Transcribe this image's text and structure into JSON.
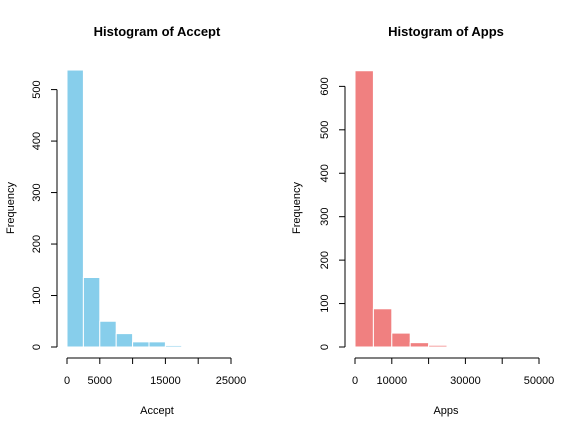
{
  "chart_data": [
    {
      "type": "bar",
      "title": "Histogram of Accept",
      "xlabel": "Accept",
      "ylabel": "Frequency",
      "color": "#87CEEB",
      "bin_edges": [
        0,
        2500,
        5000,
        7500,
        10000,
        12500,
        15000,
        17500,
        20000,
        22500,
        25000
      ],
      "values": [
        538,
        135,
        50,
        26,
        10,
        10,
        3,
        1,
        0,
        0
      ],
      "xlim": [
        0,
        25000
      ],
      "ylim": [
        0,
        540
      ],
      "xticks": [
        0,
        5000,
        10000,
        15000,
        20000,
        25000
      ],
      "xtick_labels": [
        "0",
        "5000",
        "",
        "15000",
        "",
        "25000"
      ],
      "yticks": [
        0,
        100,
        200,
        300,
        400,
        500
      ],
      "ytick_labels": [
        "0",
        "100",
        "200",
        "300",
        "400",
        "500"
      ]
    },
    {
      "type": "bar",
      "title": "Histogram of Apps",
      "xlabel": "Apps",
      "ylabel": "Frequency",
      "color": "#F08080",
      "bin_edges": [
        0,
        5000,
        10000,
        15000,
        20000,
        25000,
        30000,
        35000,
        40000,
        45000,
        50000
      ],
      "values": [
        636,
        88,
        32,
        10,
        4,
        0,
        0,
        0,
        0,
        1
      ],
      "xlim": [
        0,
        50000
      ],
      "ylim": [
        0,
        640
      ],
      "xticks": [
        0,
        10000,
        20000,
        30000,
        40000,
        50000
      ],
      "xtick_labels": [
        "0",
        "10000",
        "",
        "30000",
        "",
        "50000"
      ],
      "yticks": [
        0,
        100,
        200,
        300,
        400,
        500,
        600
      ],
      "ytick_labels": [
        "0",
        "100",
        "200",
        "300",
        "400",
        "500",
        "600"
      ]
    }
  ]
}
